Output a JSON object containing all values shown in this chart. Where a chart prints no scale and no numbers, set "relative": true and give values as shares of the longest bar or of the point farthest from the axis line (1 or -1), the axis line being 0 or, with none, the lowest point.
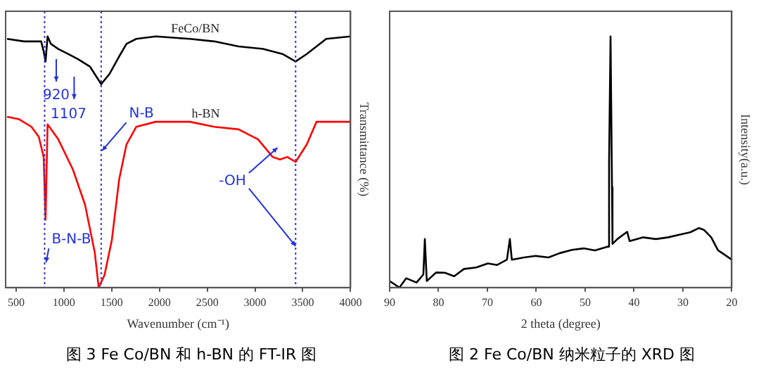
{
  "chart_data": [
    {
      "type": "line",
      "title": "图 3 Fe Co/BN 和 h-BN 的 FT-IR 图",
      "xlabel": "Wavenumber (cm⁻¹)",
      "ylabel": "Transmittance (%)",
      "relative": true,
      "tick_labels": "x",
      "grid": false,
      "legend": false,
      "marker": "none",
      "xlim": [
        390,
        4000
      ],
      "xticks": [
        500,
        1000,
        1500,
        2000,
        2500,
        3000,
        3500,
        4000
      ],
      "series": [
        {
          "name": "FeCo/BN",
          "color": "#000000",
          "x": [
            405,
            584,
            762,
            788,
            808,
            829,
            864,
            941,
            1043,
            1145,
            1272,
            1390,
            1476,
            1578,
            1655,
            1757,
            1961,
            2318,
            2573,
            2828,
            3083,
            3287,
            3425,
            3542,
            3746,
            4000
          ],
          "values": [
            0.99,
            0.98,
            0.98,
            0.94,
            0.9,
            1.0,
            0.97,
            0.95,
            0.93,
            0.91,
            0.88,
            0.81,
            0.85,
            0.92,
            0.97,
            0.99,
            1.0,
            0.99,
            0.98,
            0.96,
            0.95,
            0.93,
            0.9,
            0.93,
            0.99,
            1.0
          ]
        },
        {
          "name": "h-BN",
          "color": "#ff0000",
          "x": [
            405,
            532,
            660,
            737,
            788,
            808,
            829,
            941,
            1094,
            1221,
            1323,
            1364,
            1425,
            1502,
            1578,
            1655,
            1757,
            1961,
            2318,
            2573,
            2828,
            3032,
            3185,
            3262,
            3338,
            3425,
            3542,
            3644,
            4000
          ],
          "values": [
            0.68,
            0.67,
            0.64,
            0.6,
            0.52,
            0.27,
            0.65,
            0.59,
            0.47,
            0.33,
            0.14,
            0.0,
            0.05,
            0.19,
            0.43,
            0.57,
            0.64,
            0.66,
            0.66,
            0.64,
            0.63,
            0.59,
            0.52,
            0.51,
            0.52,
            0.5,
            0.57,
            0.66,
            0.66
          ]
        }
      ],
      "ref_lines": [
        {
          "axis": "x",
          "value": 798,
          "color": "#3333cc",
          "line_style": "dotted"
        },
        {
          "axis": "x",
          "value": 1390,
          "color": "#3333cc",
          "line_style": "dotted"
        },
        {
          "axis": "x",
          "value": 3425,
          "color": "#3333cc",
          "line_style": "dotted"
        }
      ],
      "annotations": [
        {
          "text": "920",
          "x": 920,
          "y": 0.82
        },
        {
          "text": "1107",
          "x": 1107,
          "y": 0.75
        },
        {
          "text": "N-B",
          "x": 1400,
          "y": 0.545
        },
        {
          "text": "B-N-B",
          "x": 813,
          "y": 0.1
        },
        {
          "text": "-OH",
          "x": 3236,
          "y": 0.557
        }
      ]
    },
    {
      "type": "line",
      "title": "图 2 Fe Co/BN 纳米粒子的 XRD 图",
      "xlabel": "2 theta (degree)",
      "ylabel": "Intensity(a.u.)",
      "relative": true,
      "tick_labels": "x",
      "grid": false,
      "legend": false,
      "marker": "none",
      "xlim": [
        90,
        20
      ],
      "xticks": [
        90,
        80,
        70,
        60,
        50,
        40,
        30,
        20
      ],
      "series": [
        {
          "color": "#000000",
          "x": [
            90,
            88,
            86.6,
            84.5,
            83.1,
            82.8,
            82.4,
            80.5,
            78.7,
            76.8,
            74.8,
            72.3,
            69.9,
            68,
            66,
            65.4,
            65,
            62.5,
            60.1,
            57.5,
            55.2,
            52.7,
            50.3,
            48,
            45.3,
            45.1,
            44.8,
            44.5,
            44.4,
            43.4,
            41.4,
            40.9,
            38.2,
            35.5,
            33,
            30.6,
            28.5,
            26.7,
            25.7,
            24.2,
            22.8,
            21.4,
            20
          ],
          "values": [
            0.026,
            0,
            0.037,
            0.02,
            0.052,
            0.193,
            0.026,
            0.06,
            0.059,
            0.045,
            0.074,
            0.08,
            0.096,
            0.09,
            0.111,
            0.193,
            0.111,
            0.12,
            0.126,
            0.12,
            0.137,
            0.15,
            0.156,
            0.148,
            0.163,
            0.5,
            1,
            0.4,
            0.174,
            0.193,
            0.222,
            0.185,
            0.2,
            0.193,
            0.2,
            0.211,
            0.22,
            0.237,
            0.23,
            0.2,
            0.148,
            0.13,
            0.111
          ]
        }
      ]
    }
  ]
}
